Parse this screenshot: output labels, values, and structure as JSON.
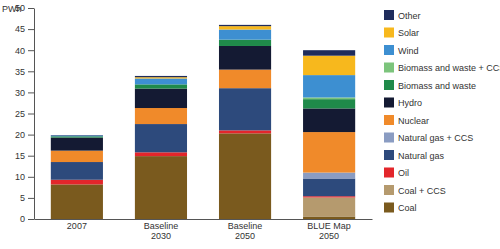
{
  "chart_data": {
    "type": "bar",
    "stacked": true,
    "legend": "right",
    "y_label": "PWh",
    "categories": [
      "2007",
      "Baseline 2030",
      "Baseline 2050",
      "BLUE Map 2050"
    ],
    "ylim": [
      0,
      50
    ],
    "yticks": [
      0,
      5,
      10,
      15,
      20,
      25,
      30,
      35,
      40,
      45,
      50
    ],
    "series": [
      {
        "name": "Coal",
        "color": "#7a5a1e",
        "values": [
          8.2,
          14.9,
          20.3,
          0.6
        ]
      },
      {
        "name": "Coal + CCS",
        "color": "#b59a6e",
        "values": [
          0,
          0,
          0,
          4.5
        ]
      },
      {
        "name": "Oil",
        "color": "#e3262b",
        "values": [
          1.1,
          0.9,
          0.7,
          0.3
        ]
      },
      {
        "name": "Natural gas",
        "color": "#2d4a7c",
        "values": [
          4.2,
          6.7,
          10,
          4.2
        ]
      },
      {
        "name": "Natural gas + CCS",
        "color": "#8a9cc2",
        "values": [
          0,
          0,
          0,
          1.4
        ]
      },
      {
        "name": "Nuclear",
        "color": "#f08a2a",
        "values": [
          2.7,
          3.8,
          4.4,
          9.6
        ]
      },
      {
        "name": "Hydro",
        "color": "#141a33",
        "values": [
          3.1,
          4.6,
          5.6,
          5.6
        ]
      },
      {
        "name": "Biomass and waste",
        "color": "#1f8a4a",
        "values": [
          0.3,
          1.0,
          1.5,
          2.2
        ]
      },
      {
        "name": "Biomass and waste + CCS",
        "color": "#7cc47c",
        "values": [
          0,
          0,
          0,
          0.4
        ]
      },
      {
        "name": "Wind",
        "color": "#3d8fd1",
        "values": [
          0.2,
          1.4,
          2.4,
          5.3
        ]
      },
      {
        "name": "Solar",
        "color": "#f7b81d",
        "values": [
          0,
          0.3,
          0.8,
          4.6
        ]
      },
      {
        "name": "Other",
        "color": "#1f2c5c",
        "values": [
          0.1,
          0.3,
          0.3,
          1.3
        ]
      }
    ]
  }
}
